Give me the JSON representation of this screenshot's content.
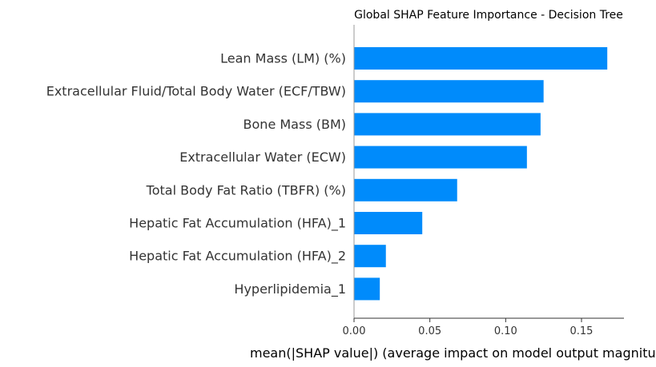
{
  "chart_data": {
    "type": "bar",
    "orientation": "horizontal",
    "title": "Global SHAP Feature Importance - Decision Tree",
    "xlabel": "mean(|SHAP value|) (average impact on model output magnitude)",
    "ylabel": "",
    "categories": [
      "Lean Mass (LM) (%)",
      "Extracellular Fluid/Total Body Water (ECF/TBW)",
      "Bone Mass (BM)",
      "Extracellular Water (ECW)",
      "Total Body Fat Ratio (TBFR) (%)",
      "Hepatic Fat Accumulation (HFA)_1",
      "Hepatic Fat Accumulation (HFA)_2",
      "Hyperlipidemia_1"
    ],
    "values": [
      0.167,
      0.125,
      0.123,
      0.114,
      0.068,
      0.045,
      0.021,
      0.017
    ],
    "xlim": [
      0,
      0.178
    ],
    "xticks": [
      0.0,
      0.05,
      0.1,
      0.15
    ],
    "xtick_labels": [
      "0.00",
      "0.05",
      "0.10",
      "0.15"
    ],
    "grid": false,
    "bar_color": "#008bfb"
  }
}
